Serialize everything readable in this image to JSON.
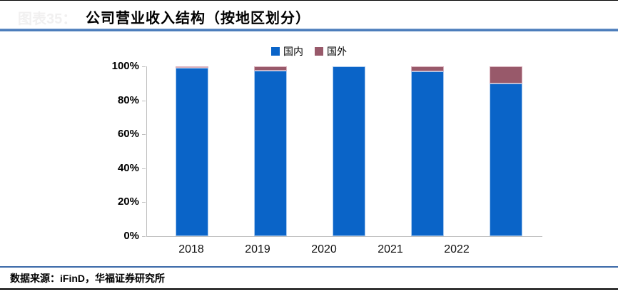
{
  "header": {
    "ghost_label": "图表35：",
    "title": "公司营业收入结构（按地区划分）"
  },
  "footer": {
    "source_text": "数据来源：iFinD，华福证券研究所"
  },
  "colors": {
    "domestic_blue": "#0a64c8",
    "foreign_maroon": "#98596a",
    "domestic_edge": "#a9c9ee",
    "foreign_edge": "#d9aeb9",
    "title_divider_blue": "#4c7dbb",
    "footer_line_blue": "#3c69a9",
    "axis_gray": "#bfbfbf"
  },
  "chart_data": {
    "type": "bar",
    "stacked": true,
    "title": "公司营业收入结构（按地区划分）",
    "categories": [
      "2018",
      "2019",
      "2020",
      "2021",
      "2022"
    ],
    "series": [
      {
        "name": "国内",
        "color": "#0a64c8",
        "edge": "#a9c9ee",
        "values": [
          99.7,
          97.5,
          100,
          97,
          90
        ]
      },
      {
        "name": "国外",
        "color": "#98596a",
        "edge": "#d9aeb9",
        "values": [
          0.3,
          2.5,
          0,
          3,
          10
        ]
      }
    ],
    "xlabel": "",
    "ylabel": "",
    "yticks": [
      "0%",
      "20%",
      "40%",
      "60%",
      "80%",
      "100%"
    ],
    "ylim": [
      0,
      100
    ],
    "legend_position": "top-center",
    "grid": false
  }
}
